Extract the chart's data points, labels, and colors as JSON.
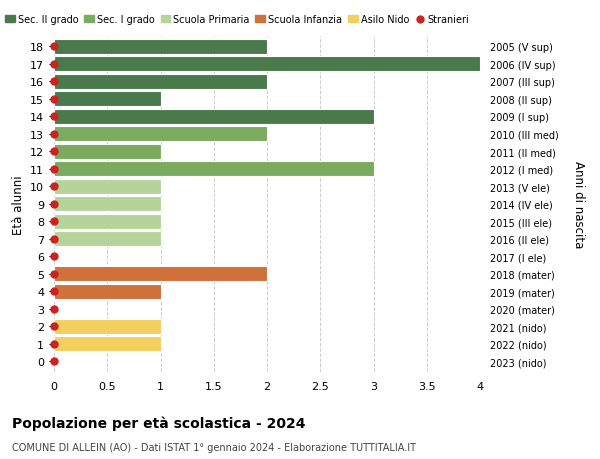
{
  "ages": [
    18,
    17,
    16,
    15,
    14,
    13,
    12,
    11,
    10,
    9,
    8,
    7,
    6,
    5,
    4,
    3,
    2,
    1,
    0
  ],
  "years": [
    "2005 (V sup)",
    "2006 (IV sup)",
    "2007 (III sup)",
    "2008 (II sup)",
    "2009 (I sup)",
    "2010 (III med)",
    "2011 (II med)",
    "2012 (I med)",
    "2013 (V ele)",
    "2014 (IV ele)",
    "2015 (III ele)",
    "2016 (II ele)",
    "2017 (I ele)",
    "2018 (mater)",
    "2019 (mater)",
    "2020 (mater)",
    "2021 (nido)",
    "2022 (nido)",
    "2023 (nido)"
  ],
  "bar_values": [
    2,
    4,
    2,
    1,
    3,
    2,
    1,
    3,
    1,
    1,
    1,
    1,
    0,
    2,
    1,
    0,
    1,
    1,
    0
  ],
  "bar_colors": [
    "#4a7a4c",
    "#4a7a4c",
    "#4a7a4c",
    "#4a7a4c",
    "#4a7a4c",
    "#7aab5e",
    "#7aab5e",
    "#7aab5e",
    "#b5d49a",
    "#b5d49a",
    "#b5d49a",
    "#b5d49a",
    "#b5d49a",
    "#d0703a",
    "#d0703a",
    "#d0703a",
    "#f2d060",
    "#f2d060",
    "#f2d060"
  ],
  "stranieri_color": "#cc2222",
  "stranieri_size": 5,
  "ylabel": "Età alunni",
  "ylabel2": "Anni di nascita",
  "xlim": [
    0,
    4.0
  ],
  "xticks": [
    0,
    0.5,
    1.0,
    1.5,
    2.0,
    2.5,
    3.0,
    3.5,
    4.0
  ],
  "title": "Popolazione per età scolastica - 2024",
  "subtitle": "COMUNE DI ALLEIN (AO) - Dati ISTAT 1° gennaio 2024 - Elaborazione TUTTITALIA.IT",
  "legend_labels": [
    "Sec. II grado",
    "Sec. I grado",
    "Scuola Primaria",
    "Scuola Infanzia",
    "Asilo Nido",
    "Stranieri"
  ],
  "legend_colors": [
    "#4a7a4c",
    "#7aab5e",
    "#b5d49a",
    "#d0703a",
    "#f2d060",
    "#cc2222"
  ],
  "legend_markers": [
    "s",
    "s",
    "s",
    "s",
    "s",
    "o"
  ],
  "grid_color": "#cccccc",
  "bg_color": "#ffffff",
  "bar_height": 0.85
}
